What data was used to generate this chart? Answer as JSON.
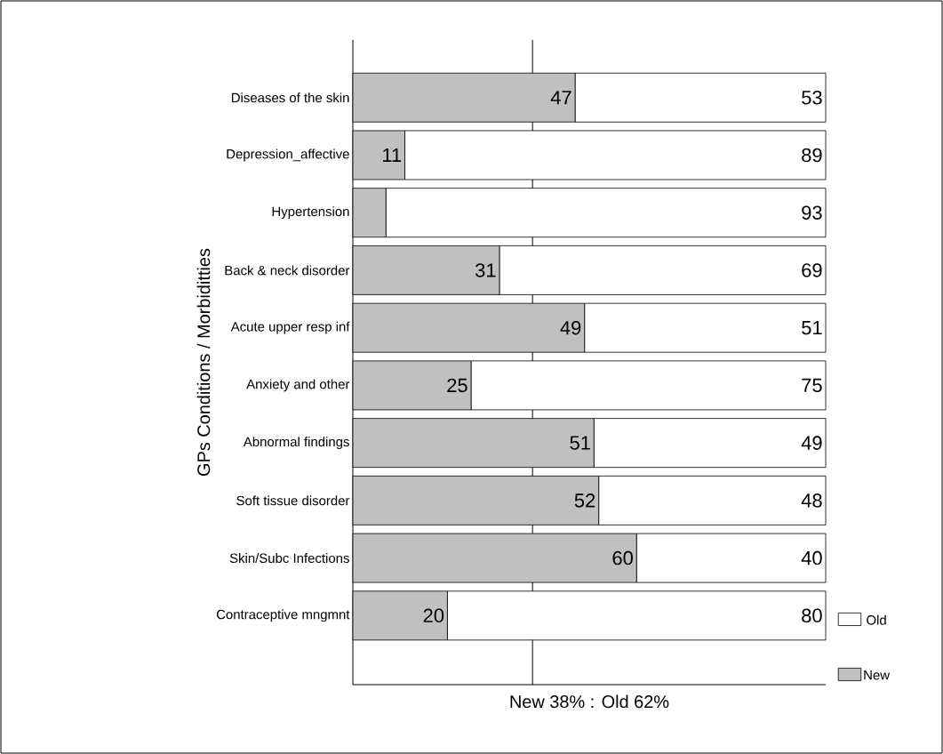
{
  "chart_data": {
    "type": "bar",
    "orientation": "horizontal",
    "stacked": true,
    "xlabel": "New 38% : Old 62%",
    "ylabel": "GPs Conditions / Morbiditties",
    "categories": [
      "Diseases of the skin",
      "Depression_affective",
      "Hypertension",
      "Back & neck disorder",
      "Acute upper resp inf",
      "Anxiety and other",
      "Abnormal findings",
      "Soft tissue disorder",
      "Skin/Subc Infections",
      "Contraceptive mngmnt"
    ],
    "xlim": [
      0,
      100
    ],
    "series": [
      {
        "name": "New",
        "color": "#c0c0c0",
        "values": [
          47,
          11,
          7,
          31,
          49,
          25,
          51,
          52,
          60,
          20
        ],
        "value_labels": [
          "47",
          "11",
          null,
          "31",
          "49",
          "25",
          "51",
          "52",
          "60",
          "20"
        ]
      },
      {
        "name": "Old",
        "color": "#ffffff",
        "values": [
          53,
          89,
          93,
          69,
          51,
          75,
          49,
          48,
          40,
          80
        ],
        "value_labels": [
          "53",
          "89",
          "93",
          "69",
          "51",
          "75",
          "49",
          "48",
          "40",
          "80"
        ]
      }
    ],
    "ref_lines": [
      {
        "axis": "x",
        "value": 38
      }
    ],
    "legend": "bottom right"
  }
}
